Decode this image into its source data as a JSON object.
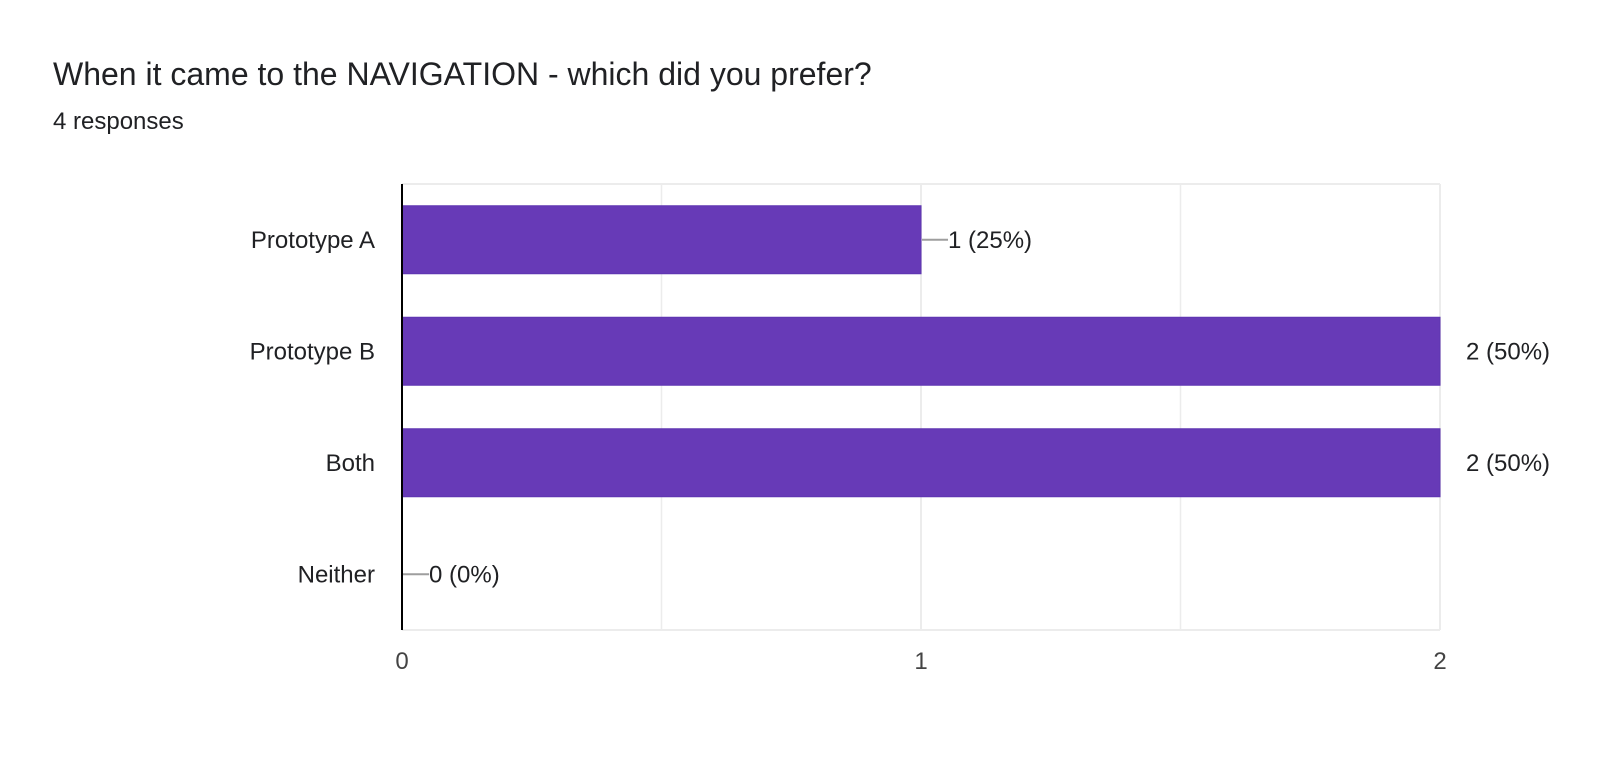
{
  "question": {
    "title": "When it came to the NAVIGATION - which did you prefer?",
    "responses": "4 responses"
  },
  "colors": {
    "bar": "#673ab7",
    "bar_stroke": "#5e35b1",
    "grid": "#ececec",
    "axis": "#000000",
    "leader": "#9e9e9e",
    "text": "#202124"
  },
  "chart_data": {
    "type": "bar",
    "orientation": "horizontal",
    "categories": [
      "Prototype A",
      "Prototype B",
      "Both",
      "Neither"
    ],
    "values": [
      1,
      2,
      2,
      0
    ],
    "data_labels": [
      "1 (25%)",
      "2 (50%)",
      "2 (50%)",
      "0 (0%)"
    ],
    "xlim": [
      0,
      2
    ],
    "x_ticks": [
      "0",
      "1",
      "2"
    ],
    "title": "",
    "xlabel": "",
    "ylabel": "",
    "grid": true,
    "legend": "none"
  }
}
